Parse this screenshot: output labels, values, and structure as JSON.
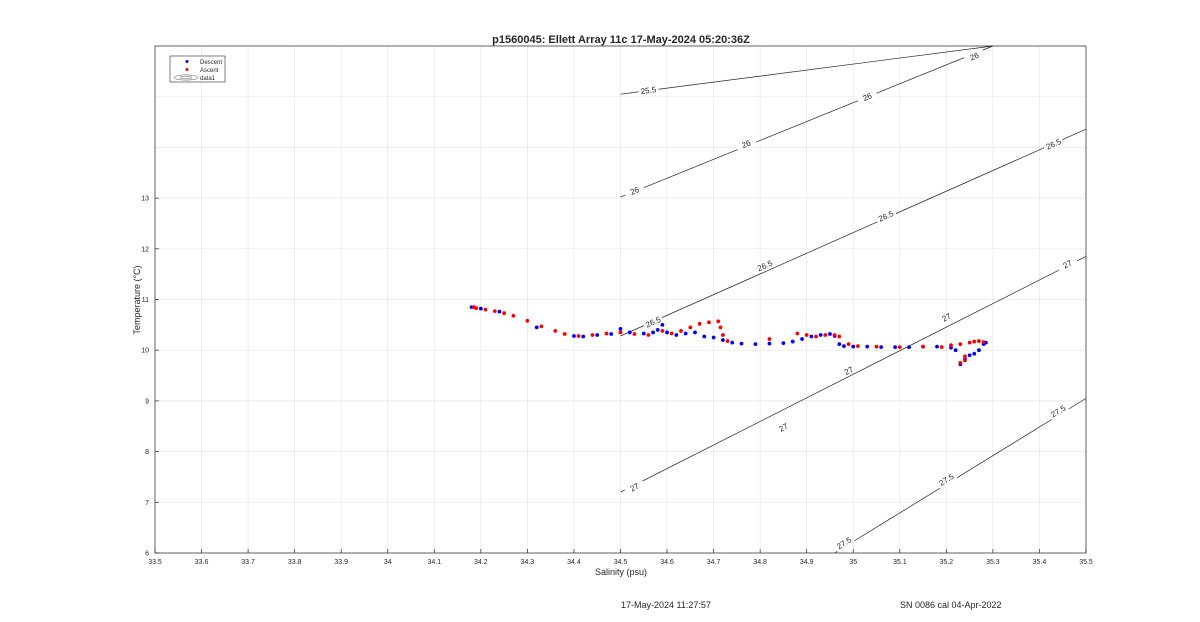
{
  "chart_data": {
    "type": "scatter",
    "title": "p1560045: Ellett Array 11c 17-May-2024 05:20:36Z",
    "xlabel": "Salinity (psu)",
    "ylabel": "Temperature (°C)",
    "xlim": [
      33.5,
      35.5
    ],
    "ylim": [
      6,
      16
    ],
    "xticks": [
      "33.5",
      "33.6",
      "33.7",
      "33.8",
      "33.9",
      "34",
      "34.1",
      "34.2",
      "34.3",
      "34.4",
      "34.5",
      "34.6",
      "34.7",
      "34.8",
      "34.9",
      "35",
      "35.1",
      "35.2",
      "35.3",
      "35.4",
      "35.5"
    ],
    "yticks": [
      "6",
      "7",
      "8",
      "9",
      "10",
      "11",
      "12",
      "13"
    ],
    "grid": true,
    "legend": {
      "placement": "top-left",
      "entries": [
        "Descent",
        "Ascent",
        "data1"
      ]
    },
    "colors": {
      "descent": "#0000ff",
      "ascent": "#ff0000",
      "contour": "#262626",
      "grid": "#e6e6e6"
    },
    "series": [
      {
        "name": "Descent",
        "points": [
          [
            34.18,
            10.85
          ],
          [
            34.2,
            10.82
          ],
          [
            34.24,
            10.76
          ],
          [
            34.32,
            10.45
          ],
          [
            34.4,
            10.28
          ],
          [
            34.42,
            10.27
          ],
          [
            34.45,
            10.3
          ],
          [
            34.48,
            10.32
          ],
          [
            34.5,
            10.42
          ],
          [
            34.52,
            10.35
          ],
          [
            34.55,
            10.33
          ],
          [
            34.57,
            10.35
          ],
          [
            34.58,
            10.4
          ],
          [
            34.59,
            10.5
          ],
          [
            34.6,
            10.35
          ],
          [
            34.62,
            10.3
          ],
          [
            34.64,
            10.33
          ],
          [
            34.66,
            10.35
          ],
          [
            34.68,
            10.27
          ],
          [
            34.7,
            10.25
          ],
          [
            34.72,
            10.2
          ],
          [
            34.74,
            10.15
          ],
          [
            34.76,
            10.13
          ],
          [
            34.79,
            10.12
          ],
          [
            34.82,
            10.13
          ],
          [
            34.85,
            10.14
          ],
          [
            34.87,
            10.17
          ],
          [
            34.89,
            10.22
          ],
          [
            34.91,
            10.27
          ],
          [
            34.93,
            10.3
          ],
          [
            34.95,
            10.32
          ],
          [
            34.96,
            10.28
          ],
          [
            34.97,
            10.12
          ],
          [
            34.98,
            10.08
          ],
          [
            35.0,
            10.07
          ],
          [
            35.03,
            10.07
          ],
          [
            35.06,
            10.06
          ],
          [
            35.09,
            10.06
          ],
          [
            35.12,
            10.06
          ],
          [
            35.15,
            10.07
          ],
          [
            35.18,
            10.07
          ],
          [
            35.21,
            10.05
          ],
          [
            35.22,
            10.0
          ],
          [
            35.23,
            9.72
          ],
          [
            35.24,
            9.82
          ],
          [
            35.25,
            9.9
          ],
          [
            35.26,
            9.93
          ],
          [
            35.27,
            10.0
          ],
          [
            35.28,
            10.12
          ],
          [
            35.285,
            10.15
          ]
        ]
      },
      {
        "name": "Ascent",
        "points": [
          [
            34.185,
            10.85
          ],
          [
            34.19,
            10.83
          ],
          [
            34.21,
            10.8
          ],
          [
            34.23,
            10.77
          ],
          [
            34.25,
            10.73
          ],
          [
            34.27,
            10.68
          ],
          [
            34.3,
            10.58
          ],
          [
            34.33,
            10.47
          ],
          [
            34.36,
            10.38
          ],
          [
            34.38,
            10.32
          ],
          [
            34.41,
            10.28
          ],
          [
            34.44,
            10.3
          ],
          [
            34.47,
            10.33
          ],
          [
            34.5,
            10.35
          ],
          [
            34.53,
            10.32
          ],
          [
            34.56,
            10.3
          ],
          [
            34.59,
            10.38
          ],
          [
            34.61,
            10.33
          ],
          [
            34.63,
            10.38
          ],
          [
            34.65,
            10.45
          ],
          [
            34.67,
            10.52
          ],
          [
            34.69,
            10.55
          ],
          [
            34.71,
            10.57
          ],
          [
            34.715,
            10.45
          ],
          [
            34.72,
            10.3
          ],
          [
            34.73,
            10.18
          ],
          [
            34.82,
            10.22
          ],
          [
            34.88,
            10.33
          ],
          [
            34.9,
            10.3
          ],
          [
            34.92,
            10.27
          ],
          [
            34.94,
            10.3
          ],
          [
            34.96,
            10.3
          ],
          [
            34.97,
            10.27
          ],
          [
            34.99,
            10.12
          ],
          [
            35.01,
            10.08
          ],
          [
            35.05,
            10.07
          ],
          [
            35.1,
            10.06
          ],
          [
            35.15,
            10.07
          ],
          [
            35.19,
            10.06
          ],
          [
            35.21,
            10.1
          ],
          [
            35.23,
            10.12
          ],
          [
            35.24,
            9.88
          ],
          [
            35.25,
            10.15
          ],
          [
            35.26,
            10.17
          ],
          [
            35.27,
            10.18
          ],
          [
            35.28,
            10.16
          ],
          [
            35.23,
            9.75
          ],
          [
            35.24,
            9.8
          ]
        ]
      }
    ],
    "contours": [
      {
        "level": "25.5",
        "labels": [
          "25.5"
        ]
      },
      {
        "level": "26",
        "labels": [
          "26",
          "26",
          "26",
          "26"
        ]
      },
      {
        "level": "26.5",
        "labels": [
          "26.5",
          "26.5",
          "26.5",
          "26.5"
        ]
      },
      {
        "level": "27",
        "labels": [
          "27",
          "27",
          "27",
          "27",
          "27"
        ]
      },
      {
        "level": "27.5",
        "labels": [
          "27.5",
          "27.5",
          "27.5"
        ]
      }
    ]
  },
  "footer": {
    "timestamp": "17-May-2024 11:27:57",
    "calibration": "SN 0086 cal 04-Apr-2022"
  }
}
